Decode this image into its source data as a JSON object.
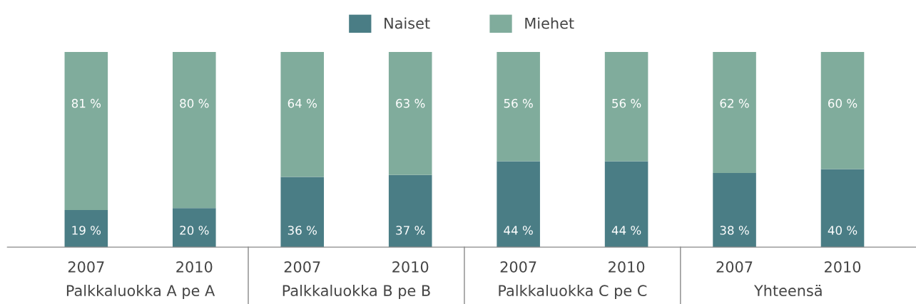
{
  "chart_data": {
    "type": "bar",
    "stacked": true,
    "legend": "top",
    "grid": false,
    "categories": [
      "2007",
      "2010",
      "2007",
      "2010",
      "2007",
      "2010",
      "2007",
      "2010"
    ],
    "series": [
      {
        "name": "Naiset",
        "color": "#4a7d85",
        "values": [
          19,
          20,
          36,
          37,
          44,
          44,
          38,
          40
        ],
        "value_labels": [
          "19 %",
          "20 %",
          "36 %",
          "37 %",
          "44 %",
          "44 %",
          "38 %",
          "40 %"
        ]
      },
      {
        "name": "Miehet",
        "color": "#80ac9c",
        "values": [
          81,
          80,
          64,
          63,
          56,
          56,
          62,
          60
        ],
        "value_labels": [
          "81 %",
          "80 %",
          "64 %",
          "63 %",
          "56 %",
          "56 %",
          "62 %",
          "60 %"
        ]
      }
    ],
    "annotations": [
      "Palkkaluokka A pe A",
      "Palkkaluokka B pe B",
      "Palkkaluokka C pe C",
      "Yhteensä"
    ]
  }
}
